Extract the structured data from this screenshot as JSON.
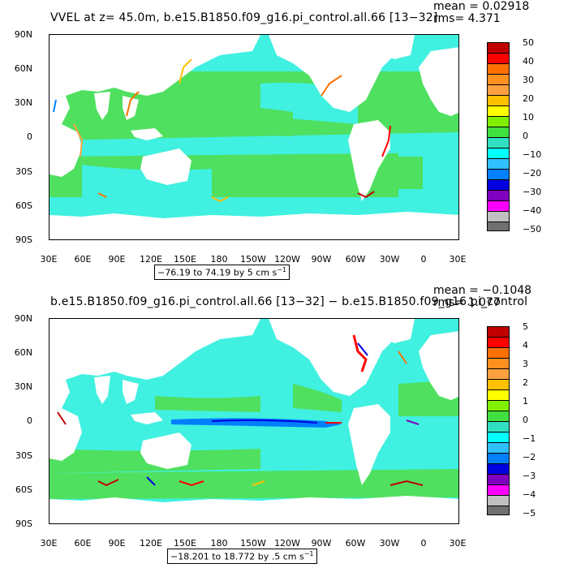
{
  "top_panel": {
    "title": "VVEL at z=   45.0m, b.e15.B1850.f09_g16.pi_control.all.66  [13−32]",
    "mean": "mean = 0.02918",
    "rms": "rms= 4.371",
    "range": "−76.19 to 74.19 by 5 cm s",
    "range_sup": "−1",
    "colorbar_labels": [
      "50",
      "40",
      "30",
      "20",
      "10",
      "0",
      "−10",
      "−20",
      "−30",
      "−40",
      "−50"
    ],
    "colorbar_colors": [
      "#c00000",
      "#ff0000",
      "#ff7000",
      "#ffa040",
      "#ffc000",
      "#ffff00",
      "#40e040",
      "#20d070",
      "#30e0c0",
      "#00ffff",
      "#30c0ff",
      "#0080ff",
      "#0000e0",
      "#8000c0",
      "#ff00ff",
      "#c0c0c0",
      "#707070"
    ]
  },
  "bottom_panel": {
    "title": "b.e15.B1850.f09_g16.pi_control.all.66  [13−32]  −  b.e15.B1850.f09_g16.pi_control",
    "mean": "mean = −0.1048",
    "rms": "rms= 1.077",
    "range": "−18.201 to 18.772 by .5 cm s",
    "range_sup": "−1",
    "colorbar_labels": [
      "5",
      "4",
      "3",
      "2",
      "1",
      "0",
      "−1",
      "−2",
      "−3",
      "−4",
      "−5"
    ],
    "colorbar_colors": [
      "#c00000",
      "#ff0000",
      "#ff7000",
      "#ffa040",
      "#ffc000",
      "#ffff00",
      "#40e040",
      "#20d070",
      "#30e0c0",
      "#00ffff",
      "#30c0ff",
      "#0080ff",
      "#0000e0",
      "#8000c0",
      "#ff00ff",
      "#c0c0c0",
      "#707070"
    ]
  },
  "lat_labels": [
    "90N",
    "60N",
    "30N",
    "0",
    "30S",
    "60S",
    "90S"
  ],
  "lon_labels": [
    "30E",
    "60E",
    "90E",
    "120E",
    "150E",
    "180",
    "150W",
    "120W",
    "90W",
    "60W",
    "30W",
    "0",
    "30E"
  ],
  "colors": {
    "ocean_base": "#5ce8c0",
    "ocean_cyan": "#40f0e0",
    "ocean_green": "#50e060",
    "land": "#ffffff"
  }
}
